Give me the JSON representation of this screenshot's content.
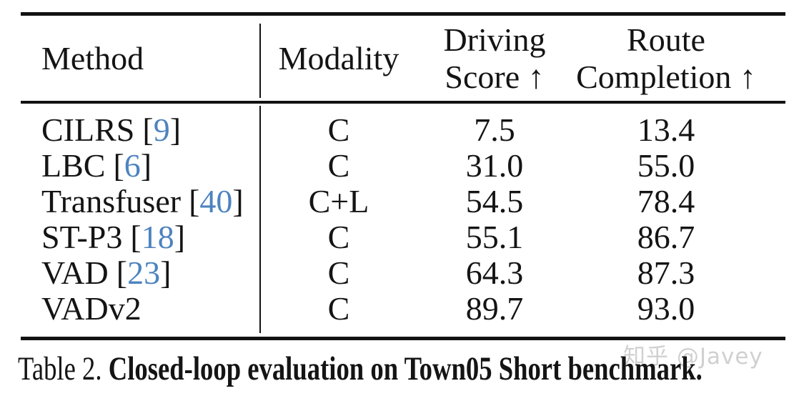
{
  "table": {
    "header": {
      "method": "Method",
      "modality": "Modality",
      "driving_line1": "Driving",
      "driving_line2": "Score ↑",
      "route_line1": "Route",
      "route_line2": "Completion ↑"
    },
    "rows": [
      {
        "method": "CILRS",
        "cite": "9",
        "modality": "C",
        "driving_score": "7.5",
        "route_completion": "13.4"
      },
      {
        "method": "LBC",
        "cite": "6",
        "modality": "C",
        "driving_score": "31.0",
        "route_completion": "55.0"
      },
      {
        "method": "Transfuser",
        "cite": "40",
        "modality": "C+L",
        "driving_score": "54.5",
        "route_completion": "78.4"
      },
      {
        "method": "ST-P3",
        "cite": "18",
        "modality": "C",
        "driving_score": "55.1",
        "route_completion": "86.7"
      },
      {
        "method": "VAD",
        "cite": "23",
        "modality": "C",
        "driving_score": "64.3",
        "route_completion": "87.3"
      },
      {
        "method": "VADv2",
        "cite": null,
        "modality": "C",
        "driving_score": "89.7",
        "route_completion": "93.0"
      }
    ]
  },
  "caption": {
    "label": "Table 2.",
    "text": "Closed-loop evaluation on Town05 Short benchmark."
  },
  "watermark": "知乎 @Javey",
  "colors": {
    "citation_blue": "#4d83bf",
    "text_black": "#141414",
    "watermark_gray": "#cbcbcb"
  }
}
